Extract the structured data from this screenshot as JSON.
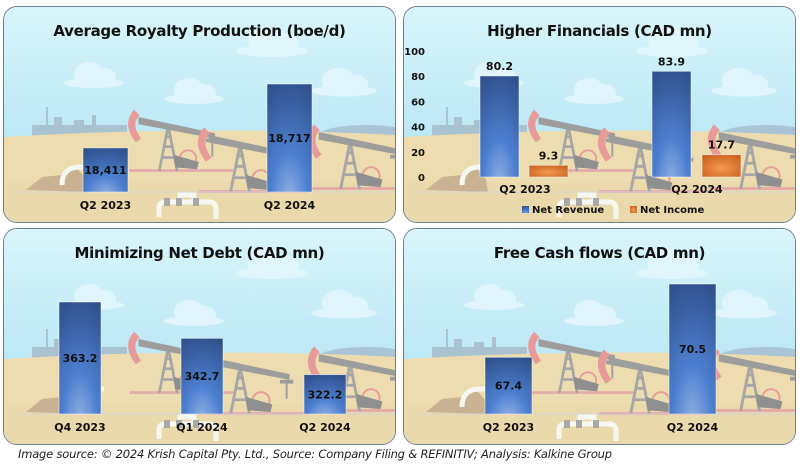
{
  "colors": {
    "bar_blue_top": "#2b4a82",
    "bar_blue_bottom": "#4d7fd0",
    "bar_orange_top": "#c4561a",
    "bar_orange_bottom": "#f29a50",
    "sky": "#c9eef8",
    "sand": "#ecdcaf",
    "panel_border": "#6e7f99"
  },
  "chart_data": [
    {
      "type": "bar",
      "title": "Average Royalty Production (boe/d)",
      "categories": [
        "Q2 2023",
        "Q2 2024"
      ],
      "values": [
        18411,
        18717
      ],
      "value_labels": [
        "18,411",
        "18,717"
      ],
      "ylim": [
        18200,
        18800
      ],
      "grid": false,
      "xlabel": "",
      "ylabel": ""
    },
    {
      "type": "bar",
      "title": "Higher Financials (CAD mn)",
      "categories": [
        "Q2 2023",
        "Q2 2024"
      ],
      "series": [
        {
          "name": "Net Revenue",
          "values": [
            80.2,
            83.9
          ],
          "value_labels": [
            "80.2",
            "83.9"
          ]
        },
        {
          "name": "Net Income",
          "values": [
            9.3,
            17.7
          ],
          "value_labels": [
            "9.3",
            "17.7"
          ]
        }
      ],
      "yticks": [
        "0",
        "20",
        "40",
        "60",
        "80",
        "100"
      ],
      "ylim": [
        0,
        100
      ],
      "legend": "bottom",
      "grid": false,
      "xlabel": "",
      "ylabel": ""
    },
    {
      "type": "bar",
      "title": "Minimizing Net Debt (CAD mn)",
      "categories": [
        "Q4 2023",
        "Q1 2024",
        "Q2 2024"
      ],
      "values": [
        363.2,
        342.7,
        322.2
      ],
      "value_labels": [
        "363.2",
        "342.7",
        "322.2"
      ],
      "ylim": [
        300,
        380
      ],
      "grid": false,
      "xlabel": "",
      "ylabel": ""
    },
    {
      "type": "bar",
      "title": "Free Cash flows (CAD mn)",
      "categories": [
        "Q2 2023",
        "Q2 2024"
      ],
      "values": [
        67.4,
        70.5
      ],
      "value_labels": [
        "67.4",
        "70.5"
      ],
      "ylim": [
        65,
        71.5
      ],
      "grid": false,
      "xlabel": "",
      "ylabel": ""
    }
  ],
  "footer": "Image source: © 2024 Krish Capital Pty. Ltd., Source: Company Filing & REFINITIV; Analysis: Kalkine Group"
}
